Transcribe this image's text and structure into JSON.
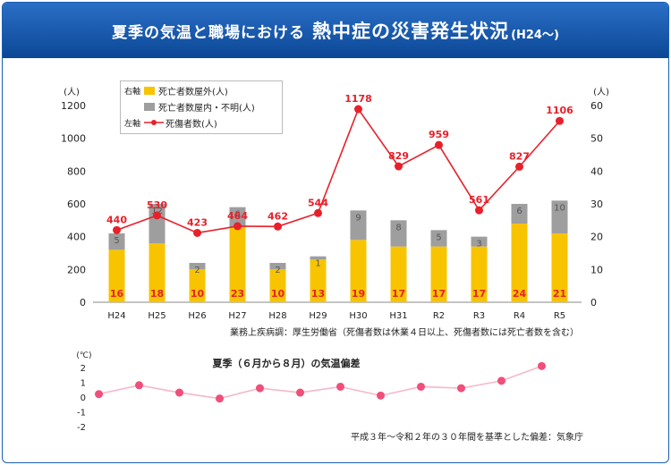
{
  "banner": {
    "title_left": "夏季の気温と職場における",
    "title_main": "熱中症の災害発生状況",
    "title_suffix": "(H24〜)"
  },
  "legend": {
    "right_axis": "右軸",
    "left_axis": "左軸",
    "items": [
      "死亡者数屋外(人)",
      "死亡者数屋内・不明(人)",
      "死傷者数(人)"
    ]
  },
  "notes": {
    "source": "業務上疾病調：厚生労働省（死傷者数は休業４日以上、死傷者数には死亡者数を含む）",
    "baseline": "平成３年〜令和２年の３０年間を基準とした偏差：気象庁"
  },
  "colors": {
    "outdoor": "#f8c400",
    "indoor": "#9e9e9e",
    "casualty_line": "#e8202a",
    "title_bar": "#1756a8",
    "anomaly_line": "#f5b8c6",
    "anomaly_dot": "#ef4f7a"
  },
  "chart_data": [
    {
      "type": "bar+line",
      "categories": [
        "H24",
        "H25",
        "H26",
        "H27",
        "H28",
        "H29",
        "H30",
        "H31",
        "R2",
        "R3",
        "R4",
        "R5"
      ],
      "left_unit": "(人)",
      "right_unit": "(人)",
      "left_ylim": [
        0,
        1200
      ],
      "left_ticks": [
        "0",
        "200",
        "400",
        "600",
        "800",
        "1000",
        "1200"
      ],
      "right_ylim": [
        0,
        60
      ],
      "right_ticks": [
        "0",
        "10",
        "20",
        "30",
        "40",
        "50",
        "60"
      ],
      "series": [
        {
          "name": "死亡者数屋外(人)",
          "axis": "right",
          "kind": "bar",
          "values": [
            16,
            18,
            10,
            23,
            10,
            13,
            19,
            17,
            17,
            17,
            24,
            21
          ]
        },
        {
          "name": "死亡者数屋内・不明(人)",
          "axis": "right",
          "kind": "bar",
          "values": [
            5,
            12,
            2,
            6,
            2,
            1,
            9,
            8,
            5,
            3,
            6,
            10
          ]
        },
        {
          "name": "死傷者数(人)",
          "axis": "left",
          "kind": "line",
          "values": [
            440,
            530,
            423,
            464,
            462,
            544,
            1178,
            829,
            959,
            561,
            827,
            1106
          ]
        }
      ],
      "grid": false
    },
    {
      "type": "line",
      "title": "夏季（６月から８月）の気温偏差",
      "unit": "(℃)",
      "ylim": [
        -2,
        2
      ],
      "ticks": [
        "-2",
        "-1",
        "0",
        "1",
        "2"
      ],
      "values": [
        0.2,
        0.8,
        0.3,
        -0.1,
        0.6,
        0.3,
        0.7,
        0.1,
        0.7,
        0.6,
        1.1,
        2.1
      ],
      "grid": false
    }
  ]
}
